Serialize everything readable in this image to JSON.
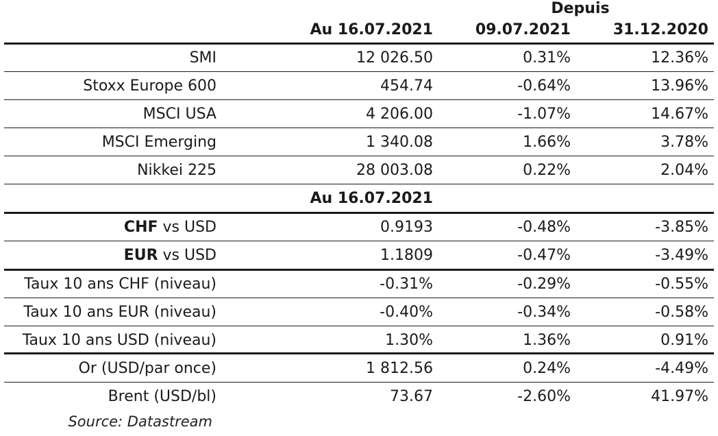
{
  "header": {
    "depuis": "Depuis",
    "col1": "Au 16.07.2021",
    "col2": "09.07.2021",
    "col3": "31.12.2020"
  },
  "section_header": "Au 16.07.2021",
  "indices": [
    {
      "name": "SMI",
      "value": "12 026.50",
      "week": "0.31%",
      "ytd": "12.36%"
    },
    {
      "name": "Stoxx Europe 600",
      "value": "454.74",
      "week": "-0.64%",
      "ytd": "13.96%"
    },
    {
      "name": "MSCI USA",
      "value": "4 206.00",
      "week": "-1.07%",
      "ytd": "14.67%"
    },
    {
      "name": "MSCI Emerging",
      "value": "1 340.08",
      "week": "1.66%",
      "ytd": "3.78%"
    },
    {
      "name": "Nikkei 225",
      "value": "28 003.08",
      "week": "0.22%",
      "ytd": "2.04%"
    }
  ],
  "fx": [
    {
      "ccy": "CHF",
      "rest": " vs USD",
      "value": "0.9193",
      "week": "-0.48%",
      "ytd": "-3.85%"
    },
    {
      "ccy": "EUR",
      "rest": " vs USD",
      "value": "1.1809",
      "week": "-0.47%",
      "ytd": "-3.49%"
    }
  ],
  "rates": [
    {
      "name": "Taux 10 ans CHF (niveau)",
      "value": "-0.31%",
      "week": "-0.29%",
      "ytd": "-0.55%"
    },
    {
      "name": "Taux 10 ans EUR (niveau)",
      "value": "-0.40%",
      "week": "-0.34%",
      "ytd": "-0.58%"
    },
    {
      "name": "Taux 10 ans USD (niveau)",
      "value": "1.30%",
      "week": "1.36%",
      "ytd": "0.91%"
    }
  ],
  "commodities": [
    {
      "name": "Or (USD/par once)",
      "value": "1 812.56",
      "week": "0.24%",
      "ytd": "-4.49%"
    },
    {
      "name": "Brent (USD/bl)",
      "value": "73.67",
      "week": "-2.60%",
      "ytd": "41.97%"
    }
  ],
  "source": "Source: Datastream"
}
